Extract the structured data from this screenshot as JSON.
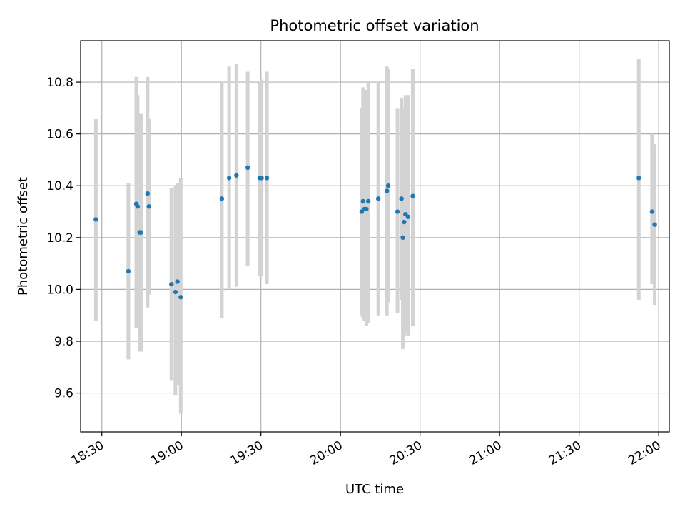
{
  "chart_data": {
    "type": "scatter",
    "title": "Photometric offset variation",
    "xlabel": "UTC time",
    "ylabel": "Photometric offset",
    "x_unit": "UTC clock time (HH:MM)",
    "xlim": [
      "18:22",
      "22:04"
    ],
    "ylim": [
      9.45,
      10.96
    ],
    "x_ticks": [
      "18:30",
      "19:00",
      "19:30",
      "20:00",
      "20:30",
      "21:00",
      "21:30",
      "22:00"
    ],
    "y_ticks": [
      9.6,
      9.8,
      10.0,
      10.2,
      10.4,
      10.6,
      10.8
    ],
    "grid": true,
    "legend": "none",
    "colors": {
      "points": "#1f77b4",
      "error_bars": "#d3d3d3",
      "grid": "#b0b0b0"
    },
    "points": [
      {
        "time": "18:27:45",
        "value": 10.27,
        "low": 9.88,
        "high": 10.66
      },
      {
        "time": "18:40:00",
        "value": 10.07,
        "low": 9.73,
        "high": 10.41
      },
      {
        "time": "18:43:00",
        "value": 10.33,
        "low": 9.85,
        "high": 10.82
      },
      {
        "time": "18:43:30",
        "value": 10.32,
        "low": 9.88,
        "high": 10.75
      },
      {
        "time": "18:44:15",
        "value": 10.22,
        "low": 9.76,
        "high": 10.68
      },
      {
        "time": "18:44:45",
        "value": 10.22,
        "low": 9.76,
        "high": 10.68
      },
      {
        "time": "18:47:15",
        "value": 10.37,
        "low": 9.93,
        "high": 10.82
      },
      {
        "time": "18:47:45",
        "value": 10.32,
        "low": 9.98,
        "high": 10.66
      },
      {
        "time": "18:56:15",
        "value": 10.02,
        "low": 9.65,
        "high": 10.39
      },
      {
        "time": "18:57:45",
        "value": 9.99,
        "low": 9.59,
        "high": 10.4
      },
      {
        "time": "18:58:30",
        "value": 10.03,
        "low": 9.63,
        "high": 10.41
      },
      {
        "time": "18:59:45",
        "value": 9.97,
        "low": 9.52,
        "high": 10.43
      },
      {
        "time": "19:15:15",
        "value": 10.35,
        "low": 9.89,
        "high": 10.8
      },
      {
        "time": "19:18:00",
        "value": 10.43,
        "low": 10.0,
        "high": 10.86
      },
      {
        "time": "19:20:45",
        "value": 10.44,
        "low": 10.01,
        "high": 10.87
      },
      {
        "time": "19:25:00",
        "value": 10.47,
        "low": 10.09,
        "high": 10.84
      },
      {
        "time": "19:29:30",
        "value": 10.43,
        "low": 10.05,
        "high": 10.8
      },
      {
        "time": "19:30:15",
        "value": 10.43,
        "low": 10.05,
        "high": 10.81
      },
      {
        "time": "19:32:15",
        "value": 10.43,
        "low": 10.02,
        "high": 10.84
      },
      {
        "time": "20:08:00",
        "value": 10.3,
        "low": 9.9,
        "high": 10.7
      },
      {
        "time": "20:08:30",
        "value": 10.34,
        "low": 9.89,
        "high": 10.78
      },
      {
        "time": "20:09:00",
        "value": 10.31,
        "low": 9.88,
        "high": 10.74
      },
      {
        "time": "20:09:45",
        "value": 10.31,
        "low": 9.86,
        "high": 10.77
      },
      {
        "time": "20:10:30",
        "value": 10.34,
        "low": 9.87,
        "high": 10.8
      },
      {
        "time": "20:14:15",
        "value": 10.35,
        "low": 9.9,
        "high": 10.8
      },
      {
        "time": "20:17:30",
        "value": 10.38,
        "low": 9.9,
        "high": 10.86
      },
      {
        "time": "20:18:00",
        "value": 10.4,
        "low": 9.95,
        "high": 10.85
      },
      {
        "time": "20:21:30",
        "value": 10.3,
        "low": 9.91,
        "high": 10.7
      },
      {
        "time": "20:23:00",
        "value": 10.35,
        "low": 9.96,
        "high": 10.74
      },
      {
        "time": "20:23:30",
        "value": 10.2,
        "low": 9.77,
        "high": 10.63
      },
      {
        "time": "20:24:00",
        "value": 10.26,
        "low": 9.82,
        "high": 10.7
      },
      {
        "time": "20:24:30",
        "value": 10.29,
        "low": 9.83,
        "high": 10.75
      },
      {
        "time": "20:25:30",
        "value": 10.28,
        "low": 9.82,
        "high": 10.75
      },
      {
        "time": "20:27:15",
        "value": 10.36,
        "low": 9.86,
        "high": 10.85
      },
      {
        "time": "21:52:30",
        "value": 10.43,
        "low": 9.96,
        "high": 10.89
      },
      {
        "time": "21:57:30",
        "value": 10.3,
        "low": 10.02,
        "high": 10.6
      },
      {
        "time": "21:58:30",
        "value": 10.25,
        "low": 9.94,
        "high": 10.56
      }
    ]
  }
}
